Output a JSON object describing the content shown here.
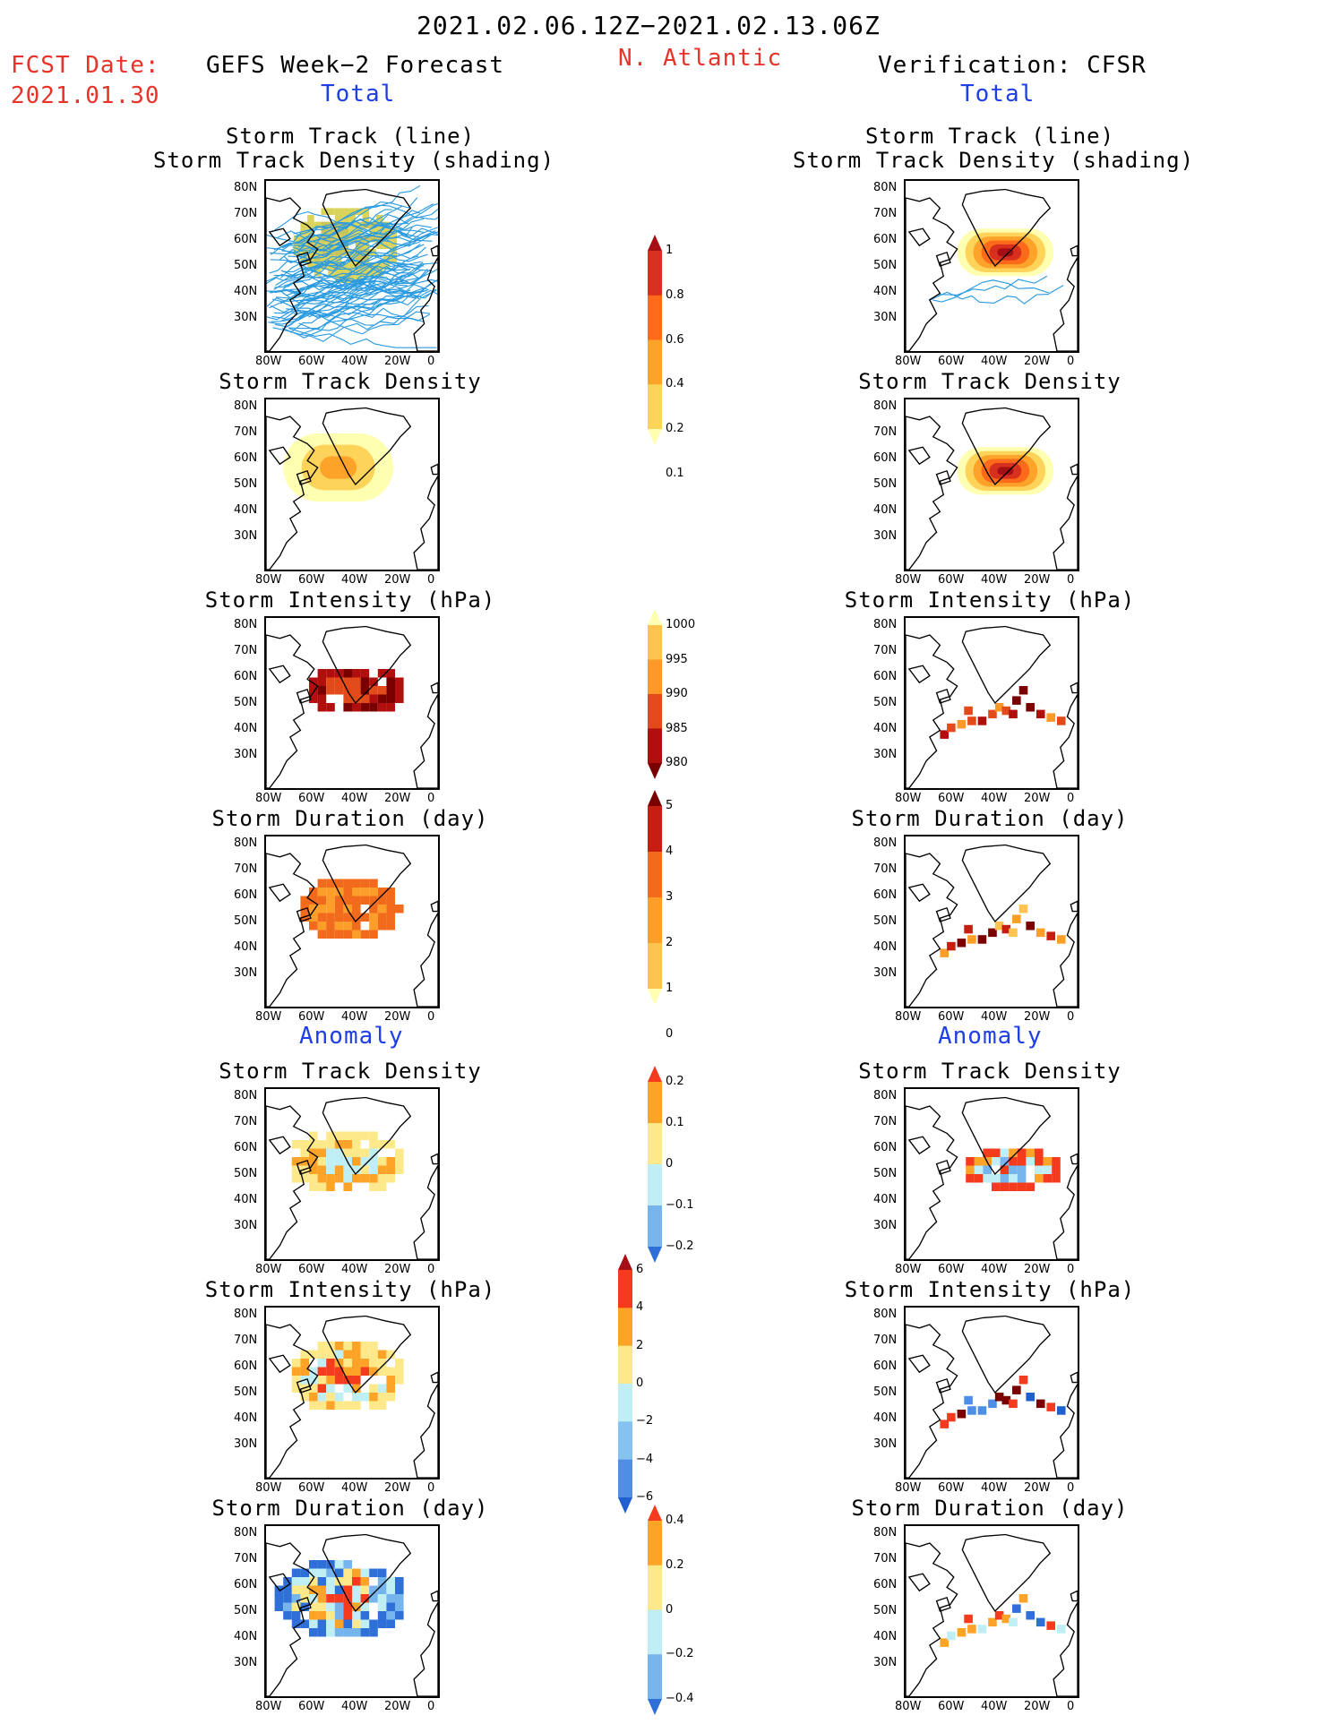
{
  "header": {
    "date_range": "2021.02.06.12Z−2021.02.13.06Z",
    "region": "N. Atlantic",
    "fcst_label": "FCST Date:",
    "fcst_date": "2021.01.30",
    "left_title": "GEFS Week−2 Forecast",
    "right_title": "Verification: CFSR",
    "total_label": "Total",
    "anomaly_label": "Anomaly"
  },
  "axis": {
    "lat_ticks": [
      "80N",
      "70N",
      "60N",
      "50N",
      "40N",
      "30N"
    ],
    "lon_ticks": [
      "80W",
      "60W",
      "40W",
      "20W",
      "0"
    ]
  },
  "panels": {
    "track_line_title_1": "Storm Track (line)",
    "track_line_title_2": "Storm Track Density (shading)",
    "density": "Storm Track Density",
    "intensity": "Storm Intensity (hPa)",
    "duration": "Storm Duration (day)"
  },
  "colorbars": {
    "density_total": {
      "labels": [
        "1",
        "0.8",
        "0.6",
        "0.4",
        "0.2",
        "0.1"
      ],
      "colors": [
        "#a50f15",
        "#d7301f",
        "#fc6a1a",
        "#fda32a",
        "#fed35a",
        "#ffffb2"
      ]
    },
    "intensity_total": {
      "labels": [
        "1000",
        "995",
        "990",
        "985",
        "980"
      ],
      "colors": [
        "#ffffb2",
        "#fec44f",
        "#fe9929",
        "#e34a1a",
        "#b10e0e",
        "#7a0000"
      ]
    },
    "duration_total": {
      "labels": [
        "5",
        "4",
        "3",
        "2",
        "1",
        "0"
      ],
      "colors": [
        "#7a0000",
        "#c81d11",
        "#f26a1b",
        "#fd9e29",
        "#fec44f",
        "#ffffb2"
      ]
    },
    "density_anom": {
      "labels": [
        "0.2",
        "0.1",
        "0",
        "−0.1",
        "−0.2"
      ],
      "colors": [
        "#f43b1e",
        "#fda328",
        "#fde98a",
        "#bfeef5",
        "#75b4ec",
        "#2e6fd8"
      ]
    },
    "intensity_anom": {
      "labels": [
        "6",
        "4",
        "2",
        "0",
        "−2",
        "−4",
        "−6"
      ],
      "colors": [
        "#a50f15",
        "#f43b1e",
        "#fda328",
        "#fde98a",
        "#bfeef5",
        "#86c2f0",
        "#4e8ee6",
        "#1f5fd0"
      ]
    },
    "duration_anom": {
      "labels": [
        "0.4",
        "0.2",
        "0",
        "−0.2",
        "−0.4"
      ],
      "colors": [
        "#f43b1e",
        "#fda328",
        "#fde98a",
        "#bfeef5",
        "#75b4ec",
        "#2e6fd8"
      ]
    }
  }
}
